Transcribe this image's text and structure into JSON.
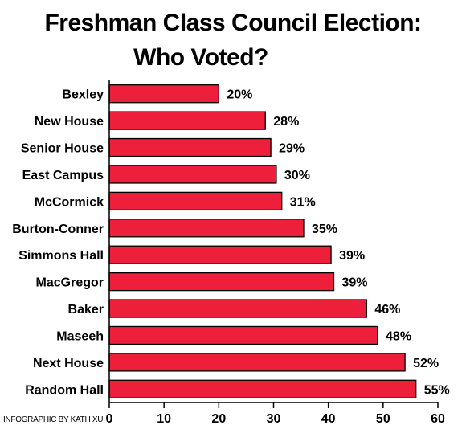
{
  "title_line1": "Freshman Class Council Election:",
  "title_line2": "Who Voted?",
  "credit": "INFOGRAPHIC BY KATH XU",
  "chart_data": {
    "type": "bar",
    "orientation": "horizontal",
    "title": "Freshman Class Council Election: Who Voted?",
    "categories": [
      "Bexley",
      "New House",
      "Senior House",
      "East Campus",
      "McCormick",
      "Burton-Conner",
      "Simmons Hall",
      "MacGregor",
      "Baker",
      "Maseeh",
      "Next House",
      "Random Hall"
    ],
    "values": [
      20,
      28,
      29,
      30,
      31,
      35,
      39,
      39,
      46,
      48,
      52,
      55
    ],
    "value_labels": [
      "20%",
      "28%",
      "29%",
      "30%",
      "31%",
      "35%",
      "39%",
      "39%",
      "46%",
      "48%",
      "52%",
      "55%"
    ],
    "actual_lengths": [
      20,
      28.5,
      29.5,
      30.5,
      31.5,
      35.5,
      40.5,
      41,
      47,
      49,
      54,
      56
    ],
    "xlim": [
      0,
      60
    ],
    "xticks": [
      0,
      10,
      20,
      30,
      40,
      50,
      60
    ],
    "xlabel": "",
    "ylabel": "",
    "bar_color": "#ee1f3b",
    "grid": false
  }
}
